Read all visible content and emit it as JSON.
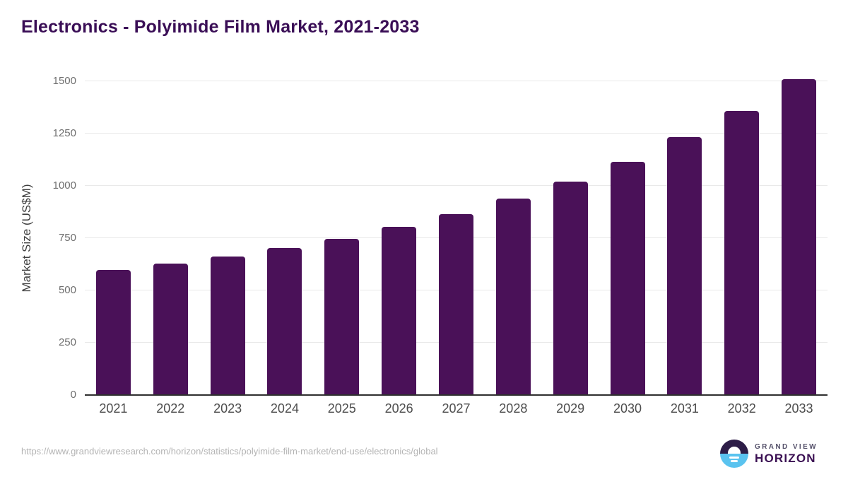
{
  "chart_data": {
    "type": "bar",
    "title": "Electronics - Polyimide Film Market, 2021-2033",
    "categories": [
      "2021",
      "2022",
      "2023",
      "2024",
      "2025",
      "2026",
      "2027",
      "2028",
      "2029",
      "2030",
      "2031",
      "2032",
      "2033"
    ],
    "values": [
      597,
      629,
      662,
      702,
      748,
      803,
      866,
      940,
      1022,
      1115,
      1232,
      1359,
      1510
    ],
    "xlabel": "",
    "ylabel": "Market Size (US$M)",
    "ylim": [
      0,
      1500
    ],
    "yticks": [
      0,
      250,
      500,
      750,
      1000,
      1250,
      1500
    ],
    "grid": true,
    "legend": "none"
  },
  "footer": {
    "source_url": "https://www.grandviewresearch.com/horizon/statistics/polyimide-film-market/end-use/electronics/global",
    "brand": {
      "line1": "GRAND VIEW",
      "line2": "HORIZON"
    }
  },
  "colors": {
    "bar": "#4a1158",
    "title": "#3a0e56",
    "gridline": "#e9e9e9",
    "axis_line": "#2f2f2f",
    "logo_top": "#2d1d47",
    "logo_bottom": "#5ac3ef"
  }
}
